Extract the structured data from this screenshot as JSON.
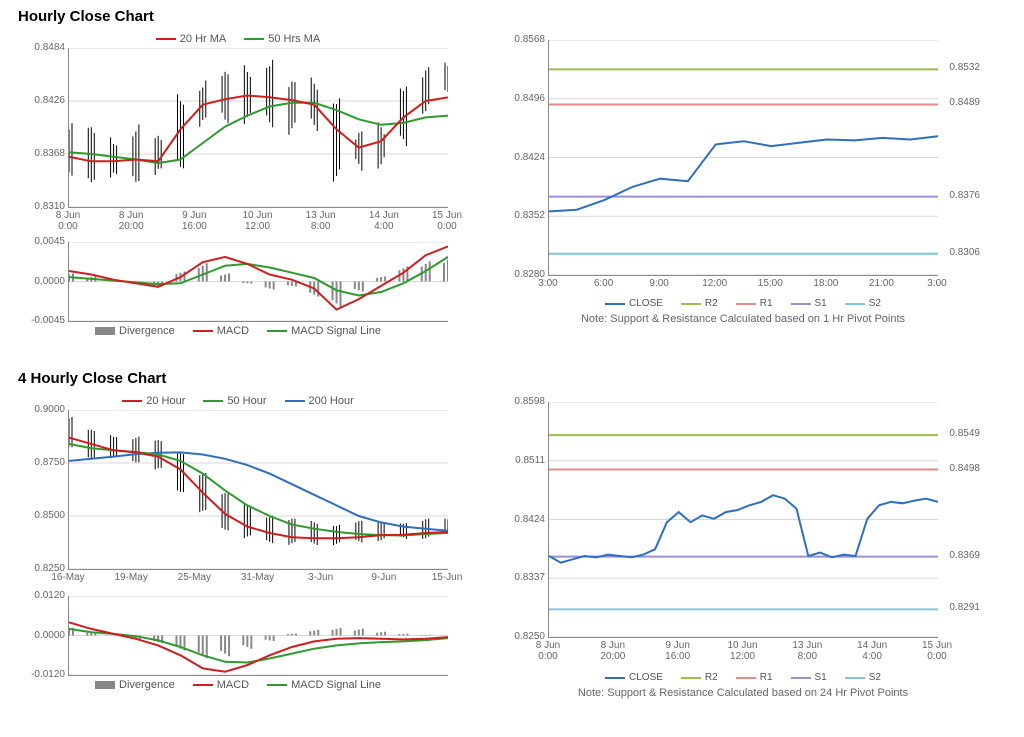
{
  "page_background": "#ffffff",
  "font": {
    "family": "Arial",
    "axis_color": "#666666",
    "axis_size_pt": 10,
    "title_size_pt": 15,
    "legend_size_pt": 11
  },
  "colors": {
    "grid": "#d9d9d9",
    "axis": "#888888",
    "candle": "#000000",
    "ma20": "#d01d1d",
    "ma50": "#2e9b2e",
    "ma200": "#2f6fbf",
    "divergence": "#888888",
    "macd": "#d01d1d",
    "macd_signal": "#2e9b2e",
    "close": "#2f6fbf",
    "r2": "#9cbf4a",
    "r1": "#e98a8a",
    "s1": "#9a8fd4",
    "s2": "#7fcad9"
  },
  "sections": {
    "hourly": {
      "title": "Hourly Close Chart",
      "top_legend": [
        {
          "label": "20 Hr MA",
          "color": "#d01d1d"
        },
        {
          "label": "50 Hrs MA",
          "color": "#2e9b2e"
        }
      ],
      "price_chart": {
        "type": "candlestick_with_ma",
        "ylim": [
          0.831,
          0.8484
        ],
        "yticks": [
          0.831,
          0.8368,
          0.8426,
          0.8484
        ],
        "x_categories": [
          "8 Jun\n0:00",
          "8 Jun\n20:00",
          "9 Jun\n16:00",
          "10 Jun\n12:00",
          "13 Jun\n8:00",
          "14 Jun\n4:00",
          "15 Jun\n0:00"
        ],
        "ma20_values": [
          0.8365,
          0.836,
          0.836,
          0.8362,
          0.836,
          0.8395,
          0.8422,
          0.8428,
          0.8432,
          0.843,
          0.8427,
          0.8422,
          0.8395,
          0.8375,
          0.8382,
          0.8408,
          0.8426,
          0.843
        ],
        "ma50_values": [
          0.837,
          0.8368,
          0.8365,
          0.8362,
          0.8358,
          0.8362,
          0.838,
          0.8398,
          0.841,
          0.842,
          0.8424,
          0.8424,
          0.8416,
          0.8406,
          0.84,
          0.8402,
          0.8408,
          0.841
        ],
        "candle_ohlc_sample": {
          "note": "dense hourly bars — representative subset (approx)",
          "highs": [
            0.8395,
            0.839,
            0.8385,
            0.8395,
            0.838,
            0.843,
            0.8445,
            0.845,
            0.846,
            0.847,
            0.844,
            0.8445,
            0.843,
            0.8385,
            0.8395,
            0.8445,
            0.8455,
            0.846
          ],
          "lows": [
            0.834,
            0.8345,
            0.834,
            0.8345,
            0.8345,
            0.836,
            0.84,
            0.841,
            0.8405,
            0.8405,
            0.8395,
            0.84,
            0.8345,
            0.8355,
            0.836,
            0.838,
            0.842,
            0.843
          ]
        }
      },
      "macd_chart": {
        "type": "macd",
        "ylim": [
          -0.0045,
          0.0045
        ],
        "yticks": [
          -0.0045,
          0.0,
          0.0045
        ],
        "divergence_bars": [
          0.0008,
          0.0005,
          0.0002,
          -0.0003,
          -0.0005,
          0.001,
          0.0018,
          0.0008,
          -0.0002,
          -0.0008,
          -0.0005,
          -0.0015,
          -0.0025,
          -0.001,
          0.0005,
          0.0015,
          0.002,
          0.0025
        ],
        "macd_values": [
          0.0012,
          0.0008,
          0.0002,
          -0.0002,
          -0.0006,
          0.0005,
          0.0022,
          0.0028,
          0.002,
          0.0008,
          0.0002,
          -0.0008,
          -0.0032,
          -0.002,
          -0.0005,
          0.001,
          0.003,
          0.004
        ],
        "signal_values": [
          0.0005,
          0.0003,
          0.0001,
          -0.0001,
          -0.0003,
          -0.0002,
          0.0008,
          0.0018,
          0.002,
          0.0016,
          0.001,
          0.0004,
          -0.001,
          -0.0016,
          -0.0012,
          -0.0002,
          0.0012,
          0.0028
        ]
      },
      "macd_legend": [
        {
          "label": "Divergence",
          "color": "#888888",
          "style": "bar"
        },
        {
          "label": "MACD",
          "color": "#d01d1d",
          "style": "line"
        },
        {
          "label": "MACD Signal Line",
          "color": "#2e9b2e",
          "style": "line"
        }
      ],
      "sr_chart": {
        "type": "line_with_levels",
        "ylim": [
          0.828,
          0.8568
        ],
        "yticks": [
          0.828,
          0.8352,
          0.8424,
          0.8496,
          0.8568
        ],
        "x_categories": [
          "3:00",
          "6:00",
          "9:00",
          "12:00",
          "15:00",
          "18:00",
          "21:00",
          "3:00"
        ],
        "close_values": [
          0.8358,
          0.836,
          0.8372,
          0.8388,
          0.8398,
          0.8395,
          0.844,
          0.8444,
          0.8438,
          0.8442,
          0.8446,
          0.8445,
          0.8448,
          0.8446,
          0.845
        ],
        "levels": {
          "R2": 0.8532,
          "R1": 0.8489,
          "S1": 0.8376,
          "S2": 0.8306
        },
        "legend": [
          {
            "label": "CLOSE",
            "color": "#2f6fbf"
          },
          {
            "label": "R2",
            "color": "#9cbf4a"
          },
          {
            "label": "R1",
            "color": "#e98a8a"
          },
          {
            "label": "S1",
            "color": "#9a8fd4"
          },
          {
            "label": "S2",
            "color": "#7fcad9"
          }
        ],
        "note": "Note: Support & Resistance Calculated based on 1 Hr Pivot Points"
      }
    },
    "four_hourly": {
      "title": "4 Hourly Close Chart",
      "top_legend": [
        {
          "label": "20 Hour",
          "color": "#d01d1d"
        },
        {
          "label": "50 Hour",
          "color": "#2e9b2e"
        },
        {
          "label": "200 Hour",
          "color": "#2f6fbf"
        }
      ],
      "price_chart": {
        "type": "candlestick_with_ma",
        "ylim": [
          0.825,
          0.9
        ],
        "yticks": [
          0.825,
          0.85,
          0.875,
          0.9
        ],
        "x_categories": [
          "16-May",
          "19-May",
          "25-May",
          "31-May",
          "3-Jun",
          "9-Jun",
          "15-Jun"
        ],
        "ma20_values": [
          0.887,
          0.884,
          0.881,
          0.88,
          0.878,
          0.872,
          0.861,
          0.851,
          0.845,
          0.842,
          0.84,
          0.8395,
          0.8395,
          0.84,
          0.841,
          0.8412,
          0.842,
          0.8425
        ],
        "ma50_values": [
          0.884,
          0.882,
          0.881,
          0.8802,
          0.879,
          0.876,
          0.87,
          0.862,
          0.855,
          0.85,
          0.846,
          0.844,
          0.8425,
          0.8415,
          0.841,
          0.8408,
          0.8415,
          0.842
        ],
        "ma200_values": [
          0.876,
          0.877,
          0.878,
          0.8792,
          0.8798,
          0.88,
          0.879,
          0.877,
          0.874,
          0.87,
          0.865,
          0.86,
          0.855,
          0.85,
          0.847,
          0.845,
          0.844,
          0.843
        ],
        "candle_ohlc_sample": {
          "highs": [
            0.896,
            0.89,
            0.888,
            0.887,
            0.885,
            0.88,
            0.87,
            0.86,
            0.855,
            0.85,
            0.848,
            0.847,
            0.846,
            0.847,
            0.847,
            0.847,
            0.848,
            0.848
          ],
          "lows": [
            0.882,
            0.878,
            0.877,
            0.876,
            0.872,
            0.862,
            0.852,
            0.844,
            0.84,
            0.838,
            0.837,
            0.837,
            0.837,
            0.838,
            0.839,
            0.8395,
            0.84,
            0.841
          ]
        }
      },
      "macd_chart": {
        "type": "macd",
        "ylim": [
          -0.012,
          0.012
        ],
        "yticks": [
          -0.012,
          0.0,
          0.012
        ],
        "divergence_bars": [
          0.002,
          0.001,
          0.0,
          -0.001,
          -0.002,
          -0.004,
          -0.006,
          -0.0055,
          -0.0035,
          -0.0015,
          0.0005,
          0.0015,
          0.002,
          0.0018,
          0.001,
          0.0005,
          0.0002,
          0.0
        ],
        "macd_values": [
          0.004,
          0.002,
          0.0005,
          -0.001,
          -0.003,
          -0.006,
          -0.01,
          -0.011,
          -0.009,
          -0.006,
          -0.0035,
          -0.0018,
          -0.001,
          -0.0008,
          -0.001,
          -0.0012,
          -0.001,
          -0.0005
        ],
        "signal_values": [
          0.002,
          0.001,
          0.0005,
          -0.0002,
          -0.0015,
          -0.0035,
          -0.006,
          -0.008,
          -0.0082,
          -0.007,
          -0.0055,
          -0.004,
          -0.003,
          -0.0024,
          -0.002,
          -0.0018,
          -0.0014,
          -0.0008
        ]
      },
      "macd_legend": [
        {
          "label": "Divergence",
          "color": "#888888",
          "style": "bar"
        },
        {
          "label": "MACD",
          "color": "#d01d1d",
          "style": "line"
        },
        {
          "label": "MACD Signal Line",
          "color": "#2e9b2e",
          "style": "line"
        }
      ],
      "sr_chart": {
        "type": "step_with_levels",
        "ylim": [
          0.825,
          0.8598
        ],
        "yticks": [
          0.825,
          0.8337,
          0.8424,
          0.8511,
          0.8598
        ],
        "x_categories": [
          "8 Jun\n0:00",
          "8 Jun\n20:00",
          "9 Jun\n16:00",
          "10 Jun\n12:00",
          "13 Jun\n8:00",
          "14 Jun\n4:00",
          "15 Jun\n0:00"
        ],
        "close_values": [
          0.837,
          0.836,
          0.8365,
          0.837,
          0.8368,
          0.8372,
          0.837,
          0.8368,
          0.8372,
          0.838,
          0.842,
          0.8435,
          0.842,
          0.843,
          0.8425,
          0.8435,
          0.8438,
          0.8445,
          0.845,
          0.846,
          0.8455,
          0.844,
          0.837,
          0.8375,
          0.8368,
          0.8372,
          0.837,
          0.8425,
          0.8445,
          0.845,
          0.8448,
          0.8452,
          0.8455,
          0.845
        ],
        "levels": {
          "R2": 0.8549,
          "R1": 0.8498,
          "S1": 0.8369,
          "S2": 0.8291
        },
        "legend": [
          {
            "label": "CLOSE",
            "color": "#2f6fbf"
          },
          {
            "label": "R2",
            "color": "#9cbf4a"
          },
          {
            "label": "R1",
            "color": "#e98a8a"
          },
          {
            "label": "S1",
            "color": "#9a8fd4"
          },
          {
            "label": "S2",
            "color": "#7fcad9"
          }
        ],
        "note": "Note: Support & Resistance Calculated based on 24 Hr Pivot Points"
      }
    }
  }
}
